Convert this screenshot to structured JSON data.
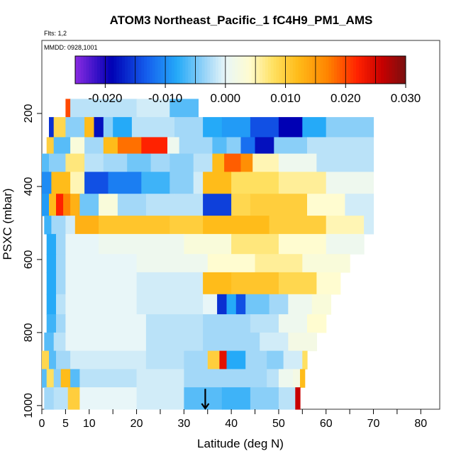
{
  "chart_data": {
    "type": "heatmap",
    "title": "ATOM3 Northeast_Pacific_1 fC4H9_PM1_AMS",
    "annotations": {
      "flights": "Flts: 1,2",
      "dates": "MMDD: 0928,1001"
    },
    "xlabel": "Latitude (deg N)",
    "ylabel": "PSXC (mbar)",
    "xlim": [
      0,
      84
    ],
    "ylim": [
      1010,
      0
    ],
    "x_ticks": [
      0,
      5,
      10,
      20,
      30,
      40,
      50,
      60,
      70,
      80
    ],
    "y_ticks": [
      200,
      400,
      600,
      800,
      1000
    ],
    "colorbar": {
      "min": -0.025,
      "max": 0.03,
      "ticks": [
        -0.02,
        -0.01,
        0.0,
        0.01,
        0.02,
        0.03
      ],
      "tick_labels": [
        "-0.020",
        "-0.010",
        "0.000",
        "0.010",
        "0.020",
        "0.030"
      ],
      "stops": [
        {
          "v": -0.025,
          "c": "#8a2be2"
        },
        {
          "v": -0.019,
          "c": "#0000b4"
        },
        {
          "v": -0.013,
          "c": "#1560ee"
        },
        {
          "v": -0.008,
          "c": "#25aaf8"
        },
        {
          "v": -0.003,
          "c": "#a3d8f8"
        },
        {
          "v": 0.0,
          "c": "#e8f6f8"
        },
        {
          "v": 0.004,
          "c": "#fffcd0"
        },
        {
          "v": 0.008,
          "c": "#ffe060"
        },
        {
          "v": 0.012,
          "c": "#ffbc1a"
        },
        {
          "v": 0.017,
          "c": "#ff8400"
        },
        {
          "v": 0.022,
          "c": "#ff2200"
        },
        {
          "v": 0.026,
          "c": "#c80000"
        },
        {
          "v": 0.03,
          "c": "#7a1010"
        }
      ]
    },
    "marker": {
      "type": "arrow-down",
      "latitude": 34.5,
      "pressure": 960
    },
    "layers": [
      {
        "p": [
          160,
          210
        ],
        "segs": [
          [
            5.0,
            6.0,
            0.02
          ],
          [
            6.0,
            20.0,
            -0.002
          ],
          [
            20.0,
            27.0,
            -0.001
          ],
          [
            27.0,
            33.0,
            -0.006
          ]
        ]
      },
      {
        "p": [
          210,
          265
        ],
        "segs": [
          [
            1.5,
            2.5,
            -0.016
          ],
          [
            2.5,
            5.0,
            0.009
          ],
          [
            5.0,
            9.0,
            -0.004
          ],
          [
            9.0,
            11.0,
            0.012
          ],
          [
            11.0,
            13.0,
            -0.018
          ],
          [
            13.0,
            15.0,
            -0.004
          ],
          [
            15.0,
            19.0,
            -0.008
          ],
          [
            19.0,
            28.0,
            -0.002
          ],
          [
            28.0,
            34.0,
            -0.003
          ],
          [
            34.0,
            38.0,
            -0.008
          ],
          [
            38.0,
            44.0,
            -0.009
          ],
          [
            44.0,
            50.0,
            -0.014
          ],
          [
            50.0,
            55.0,
            -0.019
          ],
          [
            55.0,
            60.0,
            -0.008
          ],
          [
            60.0,
            70.0,
            -0.004
          ]
        ]
      },
      {
        "p": [
          265,
          310
        ],
        "segs": [
          [
            1.0,
            2.5,
            0.01
          ],
          [
            2.5,
            6.0,
            -0.006
          ],
          [
            6.0,
            9.0,
            0.003
          ],
          [
            9.0,
            13.0,
            -0.003
          ],
          [
            13.0,
            16.0,
            0.012
          ],
          [
            16.0,
            21.0,
            0.018
          ],
          [
            21.0,
            26.5,
            0.022
          ],
          [
            26.5,
            29.0,
            0.001
          ],
          [
            29.0,
            36.0,
            -0.003
          ],
          [
            36.0,
            39.0,
            -0.006
          ],
          [
            39.0,
            42.0,
            -0.004
          ],
          [
            42.0,
            45.0,
            -0.012
          ],
          [
            45.0,
            49.0,
            -0.018
          ],
          [
            49.0,
            56.0,
            -0.004
          ],
          [
            56.0,
            70.0,
            -0.002
          ]
        ]
      },
      {
        "p": [
          310,
          360
        ],
        "segs": [
          [
            0.0,
            1.5,
            -0.006
          ],
          [
            1.5,
            5.0,
            -0.004
          ],
          [
            5.0,
            9.0,
            0.007
          ],
          [
            9.0,
            13.0,
            -0.002
          ],
          [
            13.0,
            18.0,
            -0.003
          ],
          [
            18.0,
            23.0,
            -0.005
          ],
          [
            23.0,
            27.0,
            -0.003
          ],
          [
            27.0,
            32.0,
            -0.004
          ],
          [
            32.0,
            36.0,
            -0.002
          ],
          [
            36.0,
            38.5,
            0.012
          ],
          [
            38.5,
            42.0,
            0.019
          ],
          [
            42.0,
            44.5,
            0.016
          ],
          [
            44.5,
            50.0,
            0.005
          ],
          [
            50.0,
            58.0,
            0.001
          ],
          [
            58.0,
            70.0,
            -0.002
          ]
        ]
      },
      {
        "p": [
          360,
          420
        ],
        "segs": [
          [
            0.0,
            2.0,
            -0.01
          ],
          [
            2.0,
            6.0,
            0.012
          ],
          [
            6.0,
            9.0,
            0.005
          ],
          [
            9.0,
            14.0,
            -0.014
          ],
          [
            14.0,
            21.0,
            -0.011
          ],
          [
            21.0,
            27.0,
            -0.007
          ],
          [
            27.0,
            32.0,
            -0.004
          ],
          [
            32.0,
            34.0,
            -0.001
          ],
          [
            34.0,
            40.0,
            0.012
          ],
          [
            40.0,
            50.0,
            0.008
          ],
          [
            50.0,
            60.0,
            0.006
          ],
          [
            60.0,
            70.0,
            0.001
          ]
        ]
      },
      {
        "p": [
          420,
          480
        ],
        "segs": [
          [
            0.0,
            1.5,
            -0.009
          ],
          [
            1.5,
            3.0,
            0.012
          ],
          [
            3.0,
            4.5,
            0.022
          ],
          [
            4.5,
            6.0,
            0.017
          ],
          [
            6.0,
            8.0,
            0.013
          ],
          [
            8.0,
            12.0,
            -0.005
          ],
          [
            12.0,
            16.0,
            0.003
          ],
          [
            16.0,
            22.0,
            -0.003
          ],
          [
            22.0,
            28.0,
            -0.002
          ],
          [
            28.0,
            34.0,
            -0.002
          ],
          [
            34.0,
            40.0,
            -0.015
          ],
          [
            40.0,
            44.0,
            0.009
          ],
          [
            44.0,
            56.0,
            0.01
          ],
          [
            56.0,
            64.0,
            0.004
          ],
          [
            64.0,
            70.0,
            -0.001
          ]
        ]
      },
      {
        "p": [
          480,
          530
        ],
        "segs": [
          [
            0.5,
            2.0,
            -0.007
          ],
          [
            2.0,
            5.0,
            -0.003
          ],
          [
            5.0,
            7.0,
            -0.001
          ],
          [
            7.0,
            12.0,
            0.013
          ],
          [
            12.0,
            27.0,
            0.011
          ],
          [
            27.0,
            34.0,
            0.01
          ],
          [
            34.0,
            48.0,
            0.012
          ],
          [
            48.0,
            60.0,
            0.01
          ],
          [
            60.0,
            68.0,
            0.005
          ],
          [
            68.0,
            70.0,
            -0.001
          ]
        ]
      },
      {
        "p": [
          530,
          585
        ],
        "segs": [
          [
            1.0,
            3.0,
            -0.008
          ],
          [
            3.0,
            5.0,
            -0.003
          ],
          [
            5.0,
            12.0,
            0.0
          ],
          [
            12.0,
            30.0,
            0.001
          ],
          [
            30.0,
            40.0,
            0.003
          ],
          [
            40.0,
            50.0,
            0.007
          ],
          [
            50.0,
            60.0,
            0.004
          ],
          [
            60.0,
            68.0,
            0.001
          ]
        ]
      },
      {
        "p": [
          585,
          635
        ],
        "segs": [
          [
            1.0,
            3.0,
            -0.008
          ],
          [
            3.0,
            5.0,
            -0.003
          ],
          [
            5.0,
            20.0,
            0.0
          ],
          [
            20.0,
            35.0,
            0.001
          ],
          [
            35.0,
            45.0,
            0.004
          ],
          [
            45.0,
            55.0,
            0.006
          ],
          [
            55.0,
            65.0,
            0.003
          ]
        ]
      },
      {
        "p": [
          635,
          695
        ],
        "segs": [
          [
            1.0,
            3.0,
            -0.008
          ],
          [
            3.0,
            5.0,
            -0.003
          ],
          [
            5.0,
            20.0,
            0.0
          ],
          [
            20.0,
            34.0,
            -0.001
          ],
          [
            34.0,
            40.0,
            0.012
          ],
          [
            40.0,
            50.0,
            0.011
          ],
          [
            50.0,
            58.0,
            0.009
          ],
          [
            58.0,
            63.0,
            0.004
          ]
        ]
      },
      {
        "p": [
          695,
          750
        ],
        "segs": [
          [
            1.0,
            3.0,
            -0.008
          ],
          [
            3.0,
            5.0,
            -0.002
          ],
          [
            5.0,
            20.0,
            0.0
          ],
          [
            20.0,
            34.0,
            -0.001
          ],
          [
            34.0,
            37.0,
            0.0
          ],
          [
            37.0,
            39.0,
            -0.016
          ],
          [
            39.0,
            41.0,
            -0.008
          ],
          [
            41.0,
            43.0,
            -0.014
          ],
          [
            43.0,
            48.0,
            -0.005
          ],
          [
            48.0,
            52.0,
            -0.003
          ],
          [
            52.0,
            57.0,
            0.001
          ],
          [
            57.0,
            61.0,
            0.003
          ]
        ]
      },
      {
        "p": [
          750,
          800
        ],
        "segs": [
          [
            1.0,
            3.0,
            -0.007
          ],
          [
            3.0,
            5.0,
            -0.003
          ],
          [
            5.0,
            22.0,
            0.0
          ],
          [
            22.0,
            34.0,
            -0.002
          ],
          [
            34.0,
            44.0,
            -0.003
          ],
          [
            44.0,
            50.0,
            -0.002
          ],
          [
            50.0,
            56.0,
            0.001
          ],
          [
            56.0,
            60.0,
            0.004
          ]
        ]
      },
      {
        "p": [
          800,
          850
        ],
        "segs": [
          [
            0.5,
            2.5,
            -0.006
          ],
          [
            2.5,
            5.0,
            -0.002
          ],
          [
            5.0,
            22.0,
            0.0
          ],
          [
            22.0,
            34.0,
            -0.002
          ],
          [
            34.0,
            46.0,
            -0.003
          ],
          [
            46.0,
            52.0,
            -0.001
          ],
          [
            52.0,
            58.0,
            0.002
          ]
        ]
      },
      {
        "p": [
          850,
          900
        ],
        "segs": [
          [
            0.0,
            1.5,
            0.009
          ],
          [
            1.5,
            3.0,
            -0.006
          ],
          [
            3.0,
            6.0,
            -0.003
          ],
          [
            6.0,
            22.0,
            -0.001
          ],
          [
            22.0,
            30.0,
            -0.002
          ],
          [
            30.0,
            35.0,
            -0.003
          ],
          [
            35.0,
            37.5,
            0.01
          ],
          [
            37.5,
            39.0,
            0.024
          ],
          [
            39.0,
            43.0,
            -0.008
          ],
          [
            43.0,
            47.5,
            -0.003
          ],
          [
            47.5,
            51.0,
            -0.004
          ],
          [
            51.0,
            55.0,
            -0.001
          ],
          [
            55.0,
            56.0,
            0.008
          ]
        ]
      },
      {
        "p": [
          900,
          950
        ],
        "segs": [
          [
            0.0,
            1.0,
            -0.006
          ],
          [
            1.0,
            2.5,
            0.008
          ],
          [
            2.5,
            4.0,
            -0.004
          ],
          [
            4.0,
            6.0,
            0.012
          ],
          [
            6.0,
            8.0,
            -0.006
          ],
          [
            8.0,
            20.0,
            -0.002
          ],
          [
            20.0,
            30.0,
            -0.001
          ],
          [
            30.0,
            40.0,
            -0.003
          ],
          [
            40.0,
            47.5,
            -0.003
          ],
          [
            47.5,
            50.0,
            -0.002
          ],
          [
            50.0,
            53.0,
            0.001
          ],
          [
            53.0,
            54.5,
            0.002
          ],
          [
            54.5,
            55.5,
            0.012
          ]
        ]
      },
      {
        "p": [
          950,
          1010
        ],
        "segs": [
          [
            0.5,
            2.5,
            -0.003
          ],
          [
            2.5,
            5.5,
            -0.002
          ],
          [
            5.5,
            8.0,
            0.01
          ],
          [
            8.0,
            20.0,
            0.0
          ],
          [
            20.0,
            30.0,
            -0.001
          ],
          [
            30.0,
            38.0,
            -0.006
          ],
          [
            38.0,
            44.0,
            -0.007
          ],
          [
            44.0,
            50.0,
            -0.004
          ],
          [
            50.0,
            53.5,
            -0.002
          ],
          [
            53.5,
            54.5,
            0.026
          ]
        ]
      }
    ]
  }
}
